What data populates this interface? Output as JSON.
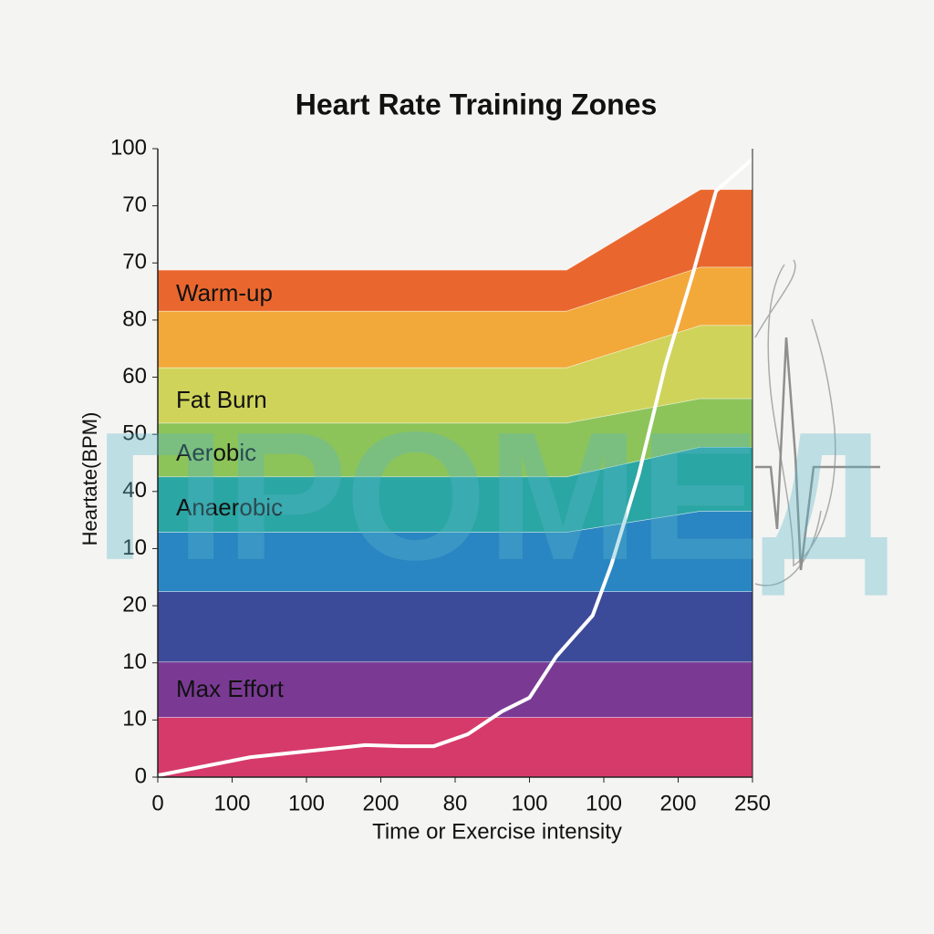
{
  "chart_data": {
    "type": "area",
    "title": "Heart Rate Training Zones",
    "xlabel": "Time or Exercise intensity",
    "ylabel": "Heartate(BPM)",
    "watermark": "ПРОМЕД",
    "xlim": [
      0,
      8
    ],
    "ylim": [
      0,
      11
    ],
    "xticks": [
      0,
      {
        "value": 1,
        "label": "100"
      },
      {
        "value": 2,
        "label": "100"
      },
      {
        "value": 3,
        "label": "200"
      },
      {
        "value": 4,
        "label": "80"
      },
      {
        "value": 5,
        "label": "100"
      },
      {
        "value": 6,
        "label": "100"
      },
      {
        "value": 7,
        "label": "200"
      },
      {
        "value": 8,
        "label": "250"
      }
    ],
    "yticks": [
      0,
      {
        "value": 1,
        "label": "10"
      },
      {
        "value": 2,
        "label": "10"
      },
      {
        "value": 3,
        "label": "20"
      },
      {
        "value": 4,
        "label": "10"
      },
      {
        "value": 5,
        "label": "40"
      },
      {
        "value": 6,
        "label": "50"
      },
      {
        "value": 7,
        "label": "60"
      },
      {
        "value": 8,
        "label": "80"
      },
      {
        "value": 9,
        "label": "70"
      },
      {
        "value": 10,
        "label": "70"
      },
      {
        "value": 11,
        "label": "100"
      }
    ],
    "x": [
      0,
      5.5,
      7.3,
      8
    ],
    "series": [
      {
        "color": "#d63a6a",
        "values": [
          1.05,
          1.05,
          1.05,
          1.05
        ]
      },
      {
        "color": "#7a3a94",
        "values": [
          0.97,
          0.97,
          0.97,
          0.97
        ]
      },
      {
        "color": "#3c4a9a",
        "values": [
          1.23,
          1.23,
          1.23,
          1.23
        ]
      },
      {
        "color": "#2a86c2",
        "values": [
          1.04,
          1.04,
          1.41,
          1.41
        ]
      },
      {
        "color": "#2aa6a4",
        "values": [
          0.97,
          0.97,
          1.12,
          1.12
        ]
      },
      {
        "color": "#8cc45a",
        "values": [
          0.94,
          0.94,
          0.85,
          0.85
        ]
      },
      {
        "color": "#cfd35a",
        "values": [
          0.97,
          0.97,
          1.28,
          1.28
        ]
      },
      {
        "color": "#f2a93a",
        "values": [
          0.99,
          0.99,
          1.02,
          1.02
        ]
      },
      {
        "color": "#e9672e",
        "values": [
          0.72,
          0.72,
          1.36,
          1.36
        ]
      }
    ],
    "line": {
      "color": "#ffffff",
      "x": [
        0,
        1.25,
        2.79,
        3.28,
        3.71,
        4.17,
        4.63,
        5.0,
        5.36,
        5.85,
        6.1,
        6.47,
        6.83,
        7.2,
        7.51,
        8.0
      ],
      "values": [
        0.03,
        0.35,
        0.56,
        0.54,
        0.54,
        0.75,
        1.15,
        1.39,
        2.11,
        2.83,
        3.71,
        5.3,
        7.22,
        8.82,
        10.26,
        10.82
      ]
    },
    "annotations": [
      "Warm-up",
      "Fat Burn",
      "Aerobic",
      "Anaerobic",
      "Max Effort"
    ]
  }
}
